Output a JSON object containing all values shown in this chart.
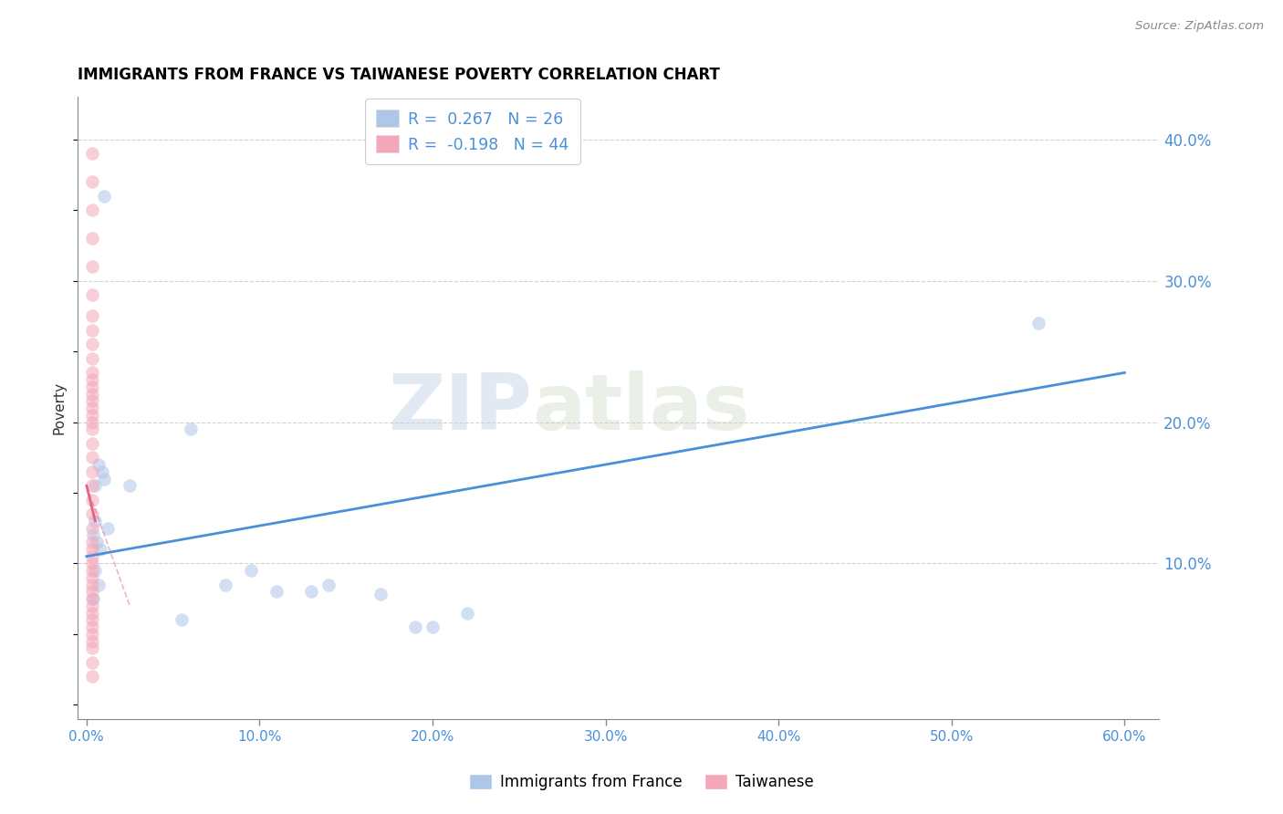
{
  "title": "IMMIGRANTS FROM FRANCE VS TAIWANESE POVERTY CORRELATION CHART",
  "source": "Source: ZipAtlas.com",
  "ylabel": "Poverty",
  "x_tick_labels": [
    "0.0%",
    "10.0%",
    "20.0%",
    "30.0%",
    "40.0%",
    "50.0%",
    "60.0%"
  ],
  "x_tick_values": [
    0,
    10,
    20,
    30,
    40,
    50,
    60
  ],
  "y_tick_labels": [
    "10.0%",
    "20.0%",
    "30.0%",
    "40.0%"
  ],
  "y_tick_values": [
    10,
    20,
    30,
    40
  ],
  "xlim": [
    -0.5,
    62
  ],
  "ylim": [
    -1,
    43
  ],
  "watermark_zip": "ZIP",
  "watermark_atlas": "atlas",
  "blue_scatter_x": [
    1.0,
    2.5,
    6.0,
    0.5,
    0.4,
    0.6,
    0.8,
    1.2,
    0.5,
    0.7,
    0.4,
    8.0,
    9.5,
    11.0,
    17.0,
    19.0,
    20.0,
    22.0,
    13.0,
    14.0,
    0.7,
    0.9,
    1.0,
    0.5,
    55.0,
    5.5
  ],
  "blue_scatter_y": [
    36.0,
    15.5,
    19.5,
    13.0,
    12.0,
    11.5,
    11.0,
    12.5,
    9.5,
    8.5,
    7.5,
    8.5,
    9.5,
    8.0,
    7.8,
    5.5,
    5.5,
    6.5,
    8.0,
    8.5,
    17.0,
    16.5,
    16.0,
    15.5,
    27.0,
    6.0
  ],
  "pink_scatter_x": [
    0.3,
    0.3,
    0.3,
    0.3,
    0.3,
    0.3,
    0.3,
    0.3,
    0.3,
    0.3,
    0.3,
    0.3,
    0.3,
    0.3,
    0.3,
    0.3,
    0.3,
    0.3,
    0.3,
    0.3,
    0.3,
    0.3,
    0.3,
    0.3,
    0.3,
    0.3,
    0.3,
    0.3,
    0.3,
    0.3,
    0.3,
    0.3,
    0.3,
    0.3,
    0.3,
    0.3,
    0.3,
    0.3,
    0.3,
    0.3,
    0.3,
    0.3,
    0.3,
    0.3
  ],
  "pink_scatter_y": [
    39.0,
    37.0,
    35.0,
    33.0,
    31.0,
    29.0,
    27.5,
    26.5,
    25.5,
    24.5,
    23.5,
    23.0,
    22.5,
    22.0,
    21.5,
    21.0,
    20.5,
    20.0,
    19.5,
    18.5,
    17.5,
    16.5,
    15.5,
    14.5,
    13.5,
    12.5,
    11.5,
    11.0,
    10.5,
    10.0,
    9.5,
    9.0,
    8.5,
    8.0,
    7.5,
    7.0,
    6.5,
    6.0,
    5.5,
    5.0,
    4.5,
    4.0,
    3.0,
    2.0
  ],
  "blue_line_x": [
    0,
    60
  ],
  "blue_line_y": [
    10.5,
    23.5
  ],
  "pink_solid_line_x": [
    0.0,
    0.5
  ],
  "pink_solid_line_y": [
    15.5,
    13.0
  ],
  "pink_dashed_line_x": [
    0.0,
    2.5
  ],
  "pink_dashed_line_y": [
    15.5,
    7.0
  ],
  "marker_size": 110,
  "marker_alpha": 0.55,
  "blue_color": "#aec6e8",
  "pink_color": "#f4a7b9",
  "blue_line_color": "#4a90d9",
  "pink_line_color": "#e05a7a",
  "grid_color": "#c8c8c8",
  "axis_color": "#4a90d9",
  "background_color": "#ffffff",
  "legend_entries": [
    {
      "label": "Immigrants from France",
      "R": "0.267",
      "N": "26",
      "color": "#aec6e8"
    },
    {
      "label": "Taiwanese",
      "R": "-0.198",
      "N": "44",
      "color": "#f4a7b9"
    }
  ]
}
